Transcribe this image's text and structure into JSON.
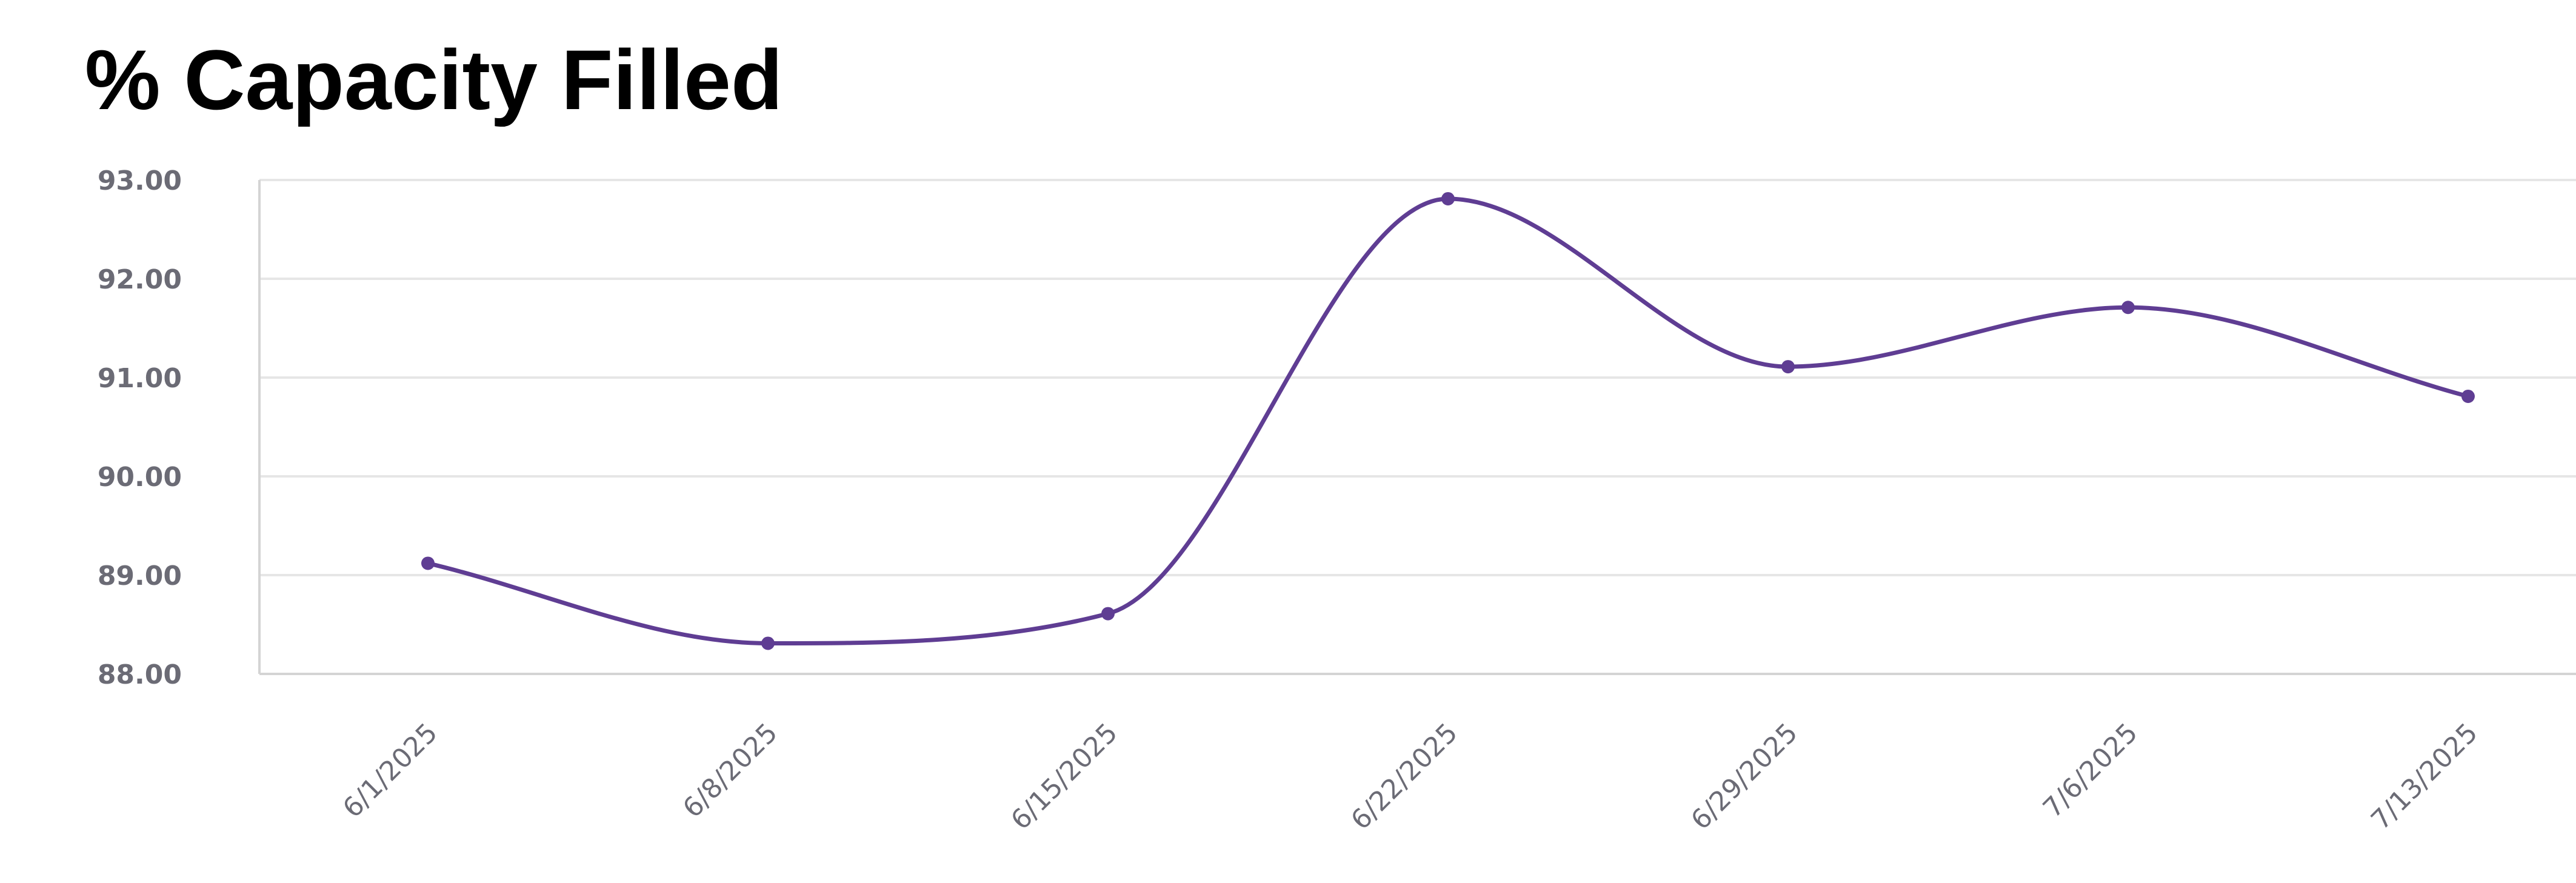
{
  "chart_data": {
    "type": "line",
    "title": "% Capacity Filled",
    "xlabel": "",
    "ylabel": "",
    "x": [
      "6/1/2025",
      "6/8/2025",
      "6/15/2025",
      "6/22/2025",
      "6/29/2025",
      "7/6/2025",
      "7/13/2025"
    ],
    "series": [
      {
        "name": "",
        "values": [
          89.12,
          88.31,
          88.61,
          92.81,
          91.11,
          91.71,
          90.81
        ]
      }
    ],
    "ylim": [
      88.0,
      93.0
    ],
    "yticks": [
      "88.00",
      "89.00",
      "90.00",
      "91.00",
      "92.00",
      "93.00"
    ],
    "grid": true,
    "legend": "none",
    "colors": {
      "line": "#5f3d93",
      "grid": "#e6e6e6",
      "axis": "#d4d4d4",
      "tick_text": "#6b6b75"
    }
  }
}
